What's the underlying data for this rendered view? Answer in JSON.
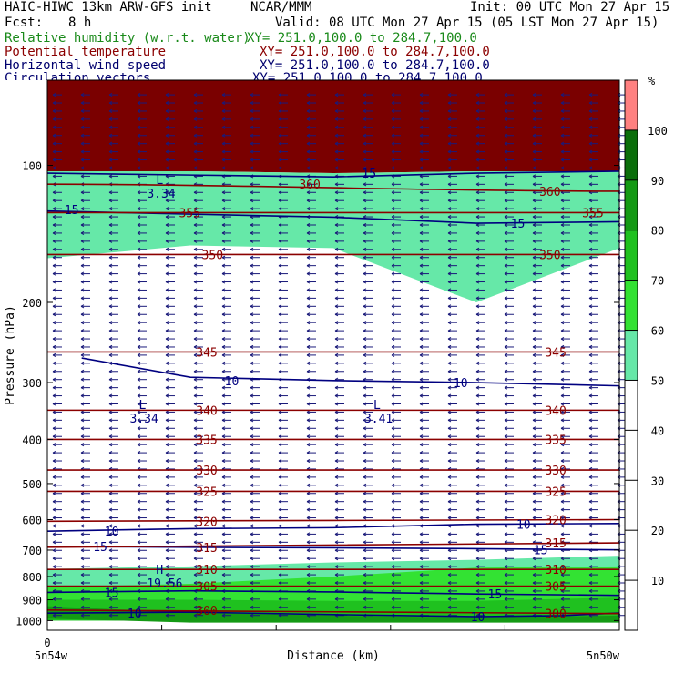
{
  "header": {
    "title": "HAIC-HIWC 13km ARW-GFS init",
    "center": "NCAR/MMM",
    "init": "Init: 00 UTC Mon 27 Apr 15",
    "fcst_label": "Fcst:",
    "fcst_value": "8 h",
    "valid": "Valid: 08 UTC Mon 27 Apr 15 (05 LST Mon 27 Apr 15)",
    "fields": [
      {
        "name": "Relative humidity (w.r.t. water)",
        "xy": "XY= 251.0,100.0 to 284.7,100.0",
        "color": "#1a8a1a"
      },
      {
        "name": "Potential temperature",
        "xy": "XY= 251.0,100.0 to 284.7,100.0",
        "color": "#8b0000"
      },
      {
        "name": "Horizontal wind speed",
        "xy": "XY= 251.0,100.0 to 284.7,100.0",
        "color": "#00006e"
      },
      {
        "name": "Circulation vectors",
        "xy": "XY= 251.0,100.0 to 284.7,100.0",
        "color": "#00006e"
      }
    ]
  },
  "chart_data": {
    "type": "heatmap",
    "title": "HAIC-HIWC 13km ARW-GFS init",
    "xlabel": "Distance (km)",
    "ylabel": "Pressure (hPa)",
    "x_left_tick": "0",
    "x_left_label": "5n54w",
    "x_right_label": "5n50w",
    "y_ticks": [
      100,
      200,
      300,
      400,
      500,
      600,
      700,
      800,
      900,
      1000
    ],
    "y_scale": "log",
    "ylim": [
      1050,
      65
    ],
    "x_minor_ticks": 5,
    "colorbar": {
      "unit": "%",
      "levels": [
        10,
        20,
        30,
        40,
        50,
        60,
        70,
        80,
        90,
        100
      ],
      "colors": [
        "#ffffff",
        "#ffffff",
        "#ffffff",
        "#ffffff",
        "#ffffff",
        "#66e8a8",
        "#33e233",
        "#1fc11f",
        "#149a14",
        "#0a6e0a",
        "#ff8080"
      ]
    },
    "theta_labels": [
      {
        "value": "360",
        "x": 0.44,
        "p": 110
      },
      {
        "value": "360",
        "x": 0.86,
        "p": 114
      },
      {
        "value": "355",
        "x": 0.23,
        "p": 127
      },
      {
        "value": "355",
        "x": 0.935,
        "p": 127
      },
      {
        "value": "350",
        "x": 0.27,
        "p": 157
      },
      {
        "value": "350",
        "x": 0.86,
        "p": 157
      },
      {
        "value": "345",
        "x": 0.26,
        "p": 257
      },
      {
        "value": "345",
        "x": 0.87,
        "p": 257
      },
      {
        "value": "340",
        "x": 0.26,
        "p": 345
      },
      {
        "value": "340",
        "x": 0.87,
        "p": 345
      },
      {
        "value": "335",
        "x": 0.26,
        "p": 400
      },
      {
        "value": "335",
        "x": 0.87,
        "p": 400
      },
      {
        "value": "330",
        "x": 0.26,
        "p": 467
      },
      {
        "value": "330",
        "x": 0.87,
        "p": 467
      },
      {
        "value": "325",
        "x": 0.26,
        "p": 520
      },
      {
        "value": "325",
        "x": 0.87,
        "p": 520
      },
      {
        "value": "320",
        "x": 0.26,
        "p": 605
      },
      {
        "value": "320",
        "x": 0.87,
        "p": 600
      },
      {
        "value": "315",
        "x": 0.26,
        "p": 690
      },
      {
        "value": "315",
        "x": 0.87,
        "p": 675
      },
      {
        "value": "310",
        "x": 0.26,
        "p": 772
      },
      {
        "value": "310",
        "x": 0.87,
        "p": 772
      },
      {
        "value": "305",
        "x": 0.26,
        "p": 840
      },
      {
        "value": "305",
        "x": 0.87,
        "p": 840
      },
      {
        "value": "300",
        "x": 0.26,
        "p": 948
      },
      {
        "value": "300",
        "x": 0.87,
        "p": 965
      }
    ],
    "wind_labels": [
      {
        "value": "15",
        "x": 0.55,
        "p": 104
      },
      {
        "value": "15",
        "x": 0.03,
        "p": 125
      },
      {
        "value": "15",
        "x": 0.81,
        "p": 134
      },
      {
        "value": "10",
        "x": 0.31,
        "p": 297
      },
      {
        "value": "10",
        "x": 0.71,
        "p": 300
      },
      {
        "value": "10",
        "x": 0.1,
        "p": 636
      },
      {
        "value": "10",
        "x": 0.82,
        "p": 614
      },
      {
        "value": "15",
        "x": 0.08,
        "p": 687
      },
      {
        "value": "15",
        "x": 0.85,
        "p": 699
      },
      {
        "value": "15",
        "x": 0.1,
        "p": 867
      },
      {
        "value": "15",
        "x": 0.77,
        "p": 874
      },
      {
        "value": "10",
        "x": 0.14,
        "p": 963
      },
      {
        "value": "10",
        "x": 0.74,
        "p": 980
      }
    ],
    "extrema": [
      {
        "letter": "L",
        "value": "3.34",
        "x": 0.19,
        "p": 110
      },
      {
        "letter": "L",
        "value": "3.34",
        "x": 0.16,
        "p": 343
      },
      {
        "letter": "L",
        "value": "3.41",
        "x": 0.57,
        "p": 343
      },
      {
        "letter": "H",
        "value": "19.56",
        "x": 0.19,
        "p": 789
      }
    ],
    "rh_bands": [
      {
        "color": "#7a0000",
        "top": [
          65,
          65,
          65,
          65,
          65
        ],
        "bottom": [
          103,
          103,
          104,
          103,
          103
        ]
      },
      {
        "color": "#66e8a8",
        "top": [
          103,
          103,
          104,
          103,
          103
        ],
        "bottom": [
          160,
          150,
          152,
          200,
          152
        ]
      },
      {
        "color": "#66e8a8",
        "top": [
          770,
          760,
          745,
          735,
          720
        ],
        "bottom": [
          1000,
          1000,
          1000,
          1000,
          1000
        ]
      },
      {
        "color": "#33e233",
        "top": [
          845,
          830,
          800,
          765,
          760
        ],
        "bottom": [
          1000,
          1000,
          1000,
          1000,
          1000
        ]
      },
      {
        "color": "#1fc11f",
        "top": [
          900,
          900,
          905,
          905,
          890
        ],
        "bottom": [
          1000,
          1000,
          1000,
          1000,
          1000
        ]
      },
      {
        "color": "#149a14",
        "top": [
          930,
          960,
          975,
          985,
          975
        ],
        "bottom": [
          990,
          1010,
          1010,
          1010,
          1010
        ]
      }
    ],
    "wind_contours": [
      {
        "value": 15,
        "x": [
          0,
          0.25,
          0.5,
          0.75,
          1
        ],
        "p": [
          104,
          105,
          106,
          104,
          103
        ]
      },
      {
        "value": 15,
        "x": [
          0,
          0.25,
          0.5,
          0.75,
          1
        ],
        "p": [
          126,
          128,
          130,
          134,
          133
        ]
      },
      {
        "value": 10,
        "x": [
          0.06,
          0.25,
          0.5,
          0.75,
          1
        ],
        "p": [
          265,
          292,
          297,
          300,
          305
        ]
      },
      {
        "value": 10,
        "x": [
          0,
          0.25,
          0.5,
          0.75,
          1
        ],
        "p": [
          636,
          628,
          625,
          614,
          612
        ]
      },
      {
        "value": 15,
        "x": [
          0,
          0.25,
          0.5,
          0.75,
          1
        ],
        "p": [
          687,
          690,
          692,
          695,
          699
        ]
      },
      {
        "value": 15,
        "x": [
          0,
          0.25,
          0.5,
          0.75,
          1
        ],
        "p": [
          867,
          860,
          865,
          874,
          880
        ]
      },
      {
        "value": 10,
        "x": [
          0,
          0.25,
          0.5,
          0.75,
          0.9,
          1
        ],
        "p": [
          963,
          958,
          970,
          980,
          975,
          962
        ]
      }
    ],
    "theta_contours": [
      360,
      355,
      350,
      345,
      340,
      335,
      330,
      325,
      320,
      315,
      310,
      305,
      300
    ],
    "wind_direction": "easterly"
  }
}
